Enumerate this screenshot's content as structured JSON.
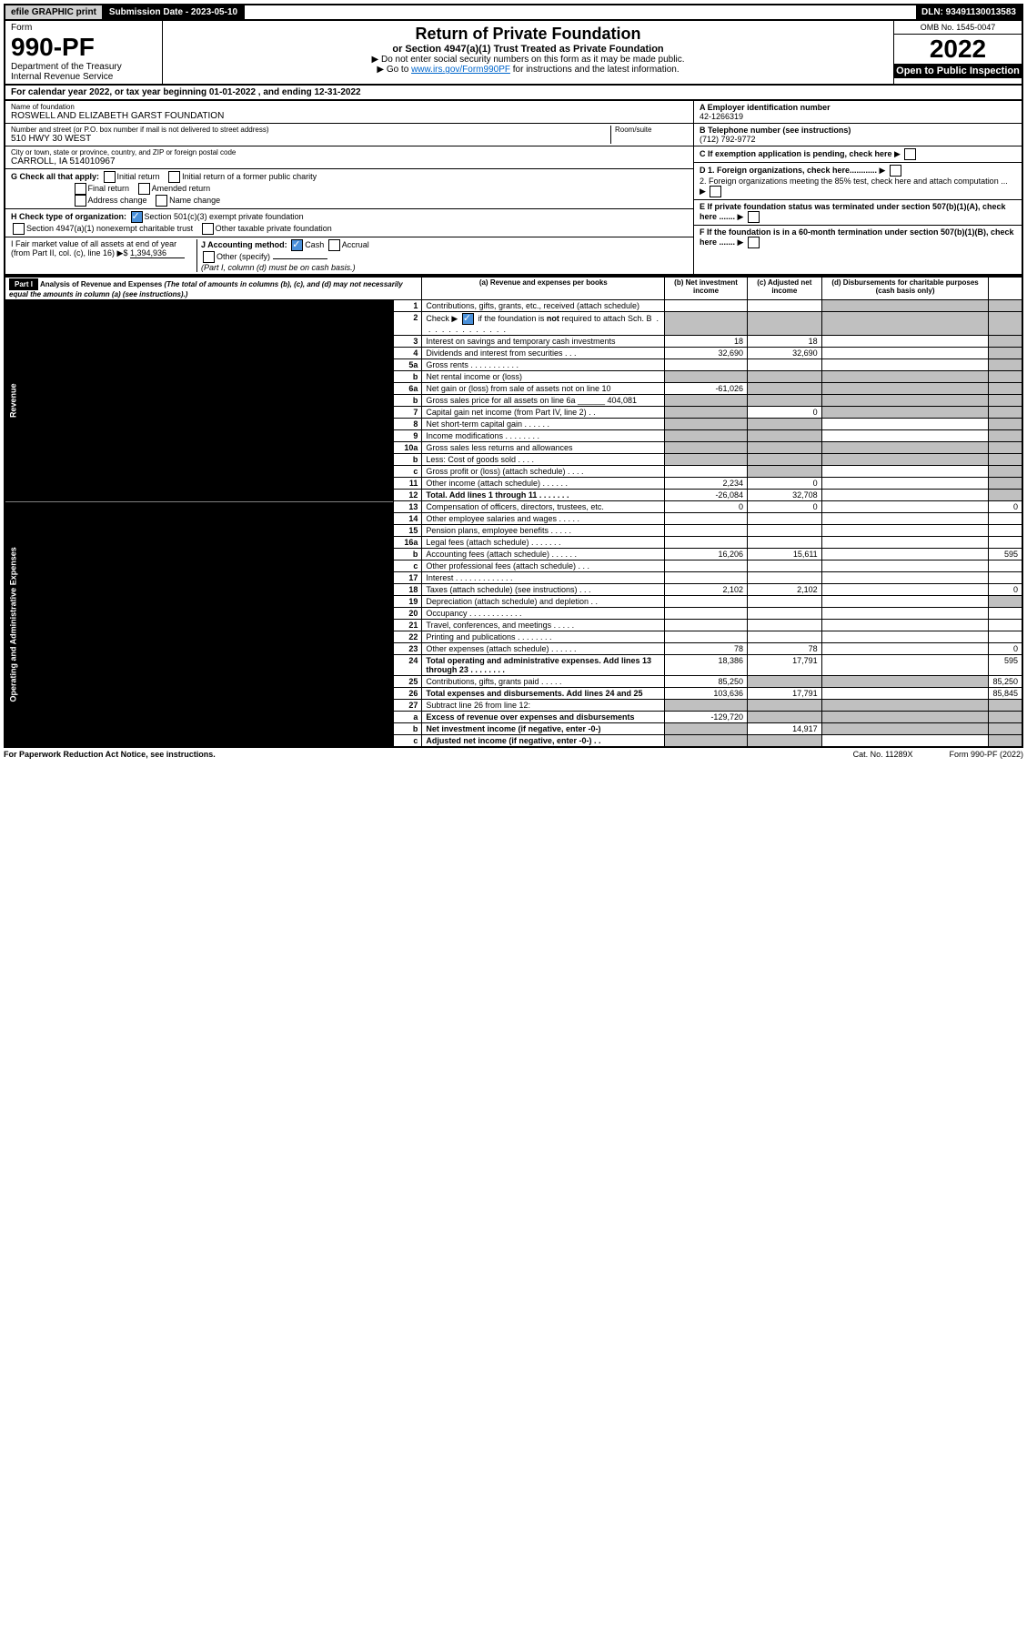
{
  "topbar": {
    "efile": "efile GRAPHIC print",
    "submission": "Submission Date - 2023-05-10",
    "dln": "DLN: 93491130013583"
  },
  "header": {
    "form_word": "Form",
    "form_no": "990-PF",
    "dept": "Department of the Treasury",
    "irs": "Internal Revenue Service",
    "title": "Return of Private Foundation",
    "subtitle": "or Section 4947(a)(1) Trust Treated as Private Foundation",
    "note1": "▶ Do not enter social security numbers on this form as it may be made public.",
    "note2_pre": "▶ Go to ",
    "note2_link": "www.irs.gov/Form990PF",
    "note2_post": " for instructions and the latest information.",
    "omb": "OMB No. 1545-0047",
    "year": "2022",
    "open": "Open to Public Inspection"
  },
  "cal_year": "For calendar year 2022, or tax year beginning 01-01-2022             , and ending 12-31-2022",
  "entity": {
    "name_lbl": "Name of foundation",
    "name": "ROSWELL AND ELIZABETH GARST FOUNDATION",
    "addr_lbl": "Number and street (or P.O. box number if mail is not delivered to street address)",
    "addr": "510 HWY 30 WEST",
    "room_lbl": "Room/suite",
    "city_lbl": "City or town, state or province, country, and ZIP or foreign postal code",
    "city": "CARROLL, IA  514010967",
    "ein_lbl": "A Employer identification number",
    "ein": "42-1266319",
    "tel_lbl": "B Telephone number (see instructions)",
    "tel": "(712) 792-9772",
    "c": "C If exemption application is pending, check here",
    "d1": "D 1. Foreign organizations, check here............",
    "d2": "2. Foreign organizations meeting the 85% test, check here and attach computation ...",
    "e": "E If private foundation status was terminated under section 507(b)(1)(A), check here .......",
    "f": "F If the foundation is in a 60-month termination under section 507(b)(1)(B), check here .......",
    "g_lbl": "G Check all that apply:",
    "g_opts": [
      "Initial return",
      "Final return",
      "Address change",
      "Initial return of a former public charity",
      "Amended return",
      "Name change"
    ],
    "h_lbl": "H Check type of organization:",
    "h1": "Section 501(c)(3) exempt private foundation",
    "h2": "Section 4947(a)(1) nonexempt charitable trust",
    "h3": "Other taxable private foundation",
    "i_lbl": "I Fair market value of all assets at end of year (from Part II, col. (c), line 16) ▶$",
    "i_val": "1,394,936",
    "j_lbl": "J Accounting method:",
    "j_cash": "Cash",
    "j_accr": "Accrual",
    "j_other": "Other (specify)",
    "j_note": "(Part I, column (d) must be on cash basis.)"
  },
  "part1": {
    "hdr": "Part I",
    "title": "Analysis of Revenue and Expenses",
    "title_note": " (The total of amounts in columns (b), (c), and (d) may not necessarily equal the amounts in column (a) (see instructions).)",
    "cols": {
      "a": "(a) Revenue and expenses per books",
      "b": "(b) Net investment income",
      "c": "(c) Adjusted net income",
      "d": "(d) Disbursements for charitable purposes (cash basis only)"
    }
  },
  "sections": {
    "revenue": "Revenue",
    "opadmin": "Operating and Administrative Expenses"
  },
  "rows": [
    {
      "n": "1",
      "d": "Contributions, gifts, grants, etc., received (attach schedule)",
      "a": "",
      "b": "",
      "c": "S",
      "dd": "S"
    },
    {
      "n": "2",
      "d": "Check ▶ [✓] if the foundation is not required to attach Sch. B   .  .  .  .  .  .  .  .  .  .  .  .  .  .",
      "a": "S",
      "b": "S",
      "c": "S",
      "dd": "S"
    },
    {
      "n": "3",
      "d": "Interest on savings and temporary cash investments",
      "a": "18",
      "b": "18",
      "c": "",
      "dd": "S"
    },
    {
      "n": "4",
      "d": "Dividends and interest from securities   .   .   .",
      "a": "32,690",
      "b": "32,690",
      "c": "",
      "dd": "S"
    },
    {
      "n": "5a",
      "d": "Gross rents   .   .   .   .   .   .   .   .   .   .   .",
      "a": "",
      "b": "",
      "c": "",
      "dd": "S"
    },
    {
      "n": "b",
      "d": "Net rental income or (loss)",
      "a": "S",
      "b": "S",
      "c": "S",
      "dd": "S"
    },
    {
      "n": "6a",
      "d": "Net gain or (loss) from sale of assets not on line 10",
      "a": "-61,026",
      "b": "S",
      "c": "S",
      "dd": "S"
    },
    {
      "n": "b",
      "d": "Gross sales price for all assets on line 6a ______ 404,081",
      "a": "S",
      "b": "S",
      "c": "S",
      "dd": "S"
    },
    {
      "n": "7",
      "d": "Capital gain net income (from Part IV, line 2)   .   .",
      "a": "S",
      "b": "0",
      "c": "S",
      "dd": "S"
    },
    {
      "n": "8",
      "d": "Net short-term capital gain   .   .   .   .   .   .",
      "a": "S",
      "b": "S",
      "c": "",
      "dd": "S"
    },
    {
      "n": "9",
      "d": "Income modifications   .   .   .   .   .   .   .   .",
      "a": "S",
      "b": "S",
      "c": "",
      "dd": "S"
    },
    {
      "n": "10a",
      "d": "Gross sales less returns and allowances",
      "a": "S",
      "b": "S",
      "c": "S",
      "dd": "S"
    },
    {
      "n": "b",
      "d": "Less: Cost of goods sold   .   .   .   .",
      "a": "S",
      "b": "S",
      "c": "S",
      "dd": "S"
    },
    {
      "n": "c",
      "d": "Gross profit or (loss) (attach schedule)   .   .   .   .",
      "a": "",
      "b": "S",
      "c": "",
      "dd": "S"
    },
    {
      "n": "11",
      "d": "Other income (attach schedule)   .   .   .   .   .   .",
      "a": "2,234",
      "b": "0",
      "c": "",
      "dd": "S"
    },
    {
      "n": "12",
      "d": "Total. Add lines 1 through 11   .   .   .   .   .   .   .",
      "a": "-26,084",
      "b": "32,708",
      "c": "",
      "dd": "S",
      "bold": true
    },
    {
      "n": "13",
      "d": "Compensation of officers, directors, trustees, etc.",
      "a": "0",
      "b": "0",
      "c": "",
      "dd": "0"
    },
    {
      "n": "14",
      "d": "Other employee salaries and wages   .   .   .   .   .",
      "a": "",
      "b": "",
      "c": "",
      "dd": ""
    },
    {
      "n": "15",
      "d": "Pension plans, employee benefits   .   .   .   .   .",
      "a": "",
      "b": "",
      "c": "",
      "dd": ""
    },
    {
      "n": "16a",
      "d": "Legal fees (attach schedule)   .   .   .   .   .   .   .",
      "a": "",
      "b": "",
      "c": "",
      "dd": ""
    },
    {
      "n": "b",
      "d": "Accounting fees (attach schedule)   .   .   .   .   .   .",
      "a": "16,206",
      "b": "15,611",
      "c": "",
      "dd": "595"
    },
    {
      "n": "c",
      "d": "Other professional fees (attach schedule)   .   .   .",
      "a": "",
      "b": "",
      "c": "",
      "dd": ""
    },
    {
      "n": "17",
      "d": "Interest   .   .   .   .   .   .   .   .   .   .   .   .   .",
      "a": "",
      "b": "",
      "c": "",
      "dd": ""
    },
    {
      "n": "18",
      "d": "Taxes (attach schedule) (see instructions)   .   .   .",
      "a": "2,102",
      "b": "2,102",
      "c": "",
      "dd": "0"
    },
    {
      "n": "19",
      "d": "Depreciation (attach schedule) and depletion   .   .",
      "a": "",
      "b": "",
      "c": "",
      "dd": "S"
    },
    {
      "n": "20",
      "d": "Occupancy   .   .   .   .   .   .   .   .   .   .   .   .",
      "a": "",
      "b": "",
      "c": "",
      "dd": ""
    },
    {
      "n": "21",
      "d": "Travel, conferences, and meetings   .   .   .   .   .",
      "a": "",
      "b": "",
      "c": "",
      "dd": ""
    },
    {
      "n": "22",
      "d": "Printing and publications   .   .   .   .   .   .   .   .",
      "a": "",
      "b": "",
      "c": "",
      "dd": ""
    },
    {
      "n": "23",
      "d": "Other expenses (attach schedule)   .   .   .   .   .   .",
      "a": "78",
      "b": "78",
      "c": "",
      "dd": "0"
    },
    {
      "n": "24",
      "d": "Total operating and administrative expenses. Add lines 13 through 23   .   .   .   .   .   .   .   .",
      "a": "18,386",
      "b": "17,791",
      "c": "",
      "dd": "595",
      "bold": true
    },
    {
      "n": "25",
      "d": "Contributions, gifts, grants paid   .   .   .   .   .",
      "a": "85250",
      "b": "S",
      "c": "S",
      "dd": "85,250"
    },
    {
      "n": "26",
      "d": "Total expenses and disbursements. Add lines 24 and 25",
      "a": "103,636",
      "b": "17,791",
      "c": "",
      "dd": "85,845",
      "bold": true
    },
    {
      "n": "27",
      "d": "Subtract line 26 from line 12:",
      "a": "S",
      "b": "S",
      "c": "S",
      "dd": "S"
    },
    {
      "n": "a",
      "d": "Excess of revenue over expenses and disbursements",
      "a": "-129,720",
      "b": "S",
      "c": "S",
      "dd": "S",
      "bold": true
    },
    {
      "n": "b",
      "d": "Net investment income (if negative, enter -0-)",
      "a": "S",
      "b": "14,917",
      "c": "S",
      "dd": "S",
      "bold": true
    },
    {
      "n": "c",
      "d": "Adjusted net income (if negative, enter -0-)   .   .",
      "a": "S",
      "b": "S",
      "c": "",
      "dd": "S",
      "bold": true
    }
  ],
  "rows25a": "85,250",
  "footer": {
    "left": "For Paperwork Reduction Act Notice, see instructions.",
    "cat": "Cat. No. 11289X",
    "form": "Form 990-PF (2022)"
  }
}
